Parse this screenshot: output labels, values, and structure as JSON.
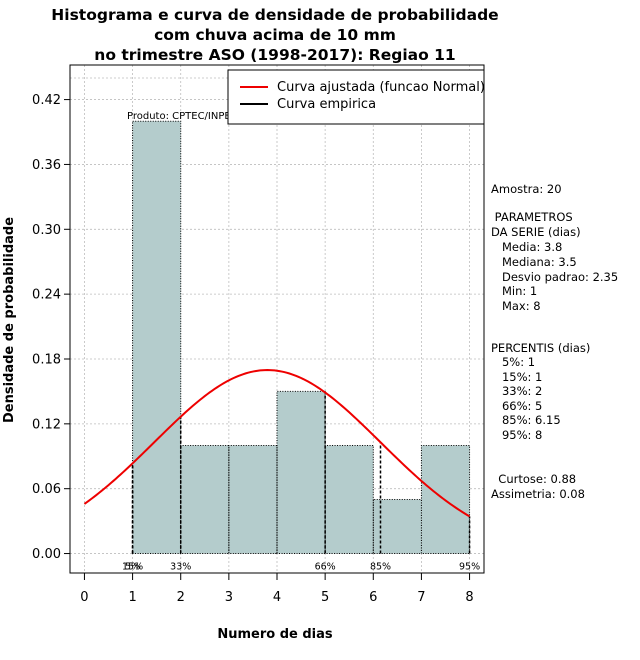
{
  "chart_data": {
    "type": "bar",
    "title_lines": [
      "Histograma e curva de densidade de probabilidade",
      "com chuva acima de 10 mm",
      "no trimestre ASO (1998-2017): Regiao 11"
    ],
    "xlabel": "Numero de dias",
    "ylabel": "Densidade de probabilidade",
    "xlim": [
      -0.3,
      8.3
    ],
    "ylim": [
      -0.018,
      0.452
    ],
    "x_ticks": [
      "0",
      "1",
      "2",
      "3",
      "4",
      "5",
      "6",
      "7",
      "8"
    ],
    "y_ticks": [
      "0.00",
      "0.06",
      "0.12",
      "0.18",
      "0.24",
      "0.30",
      "0.36",
      "0.42"
    ],
    "bins": [
      {
        "from": 1,
        "to": 2,
        "density": 0.4
      },
      {
        "from": 2,
        "to": 3,
        "density": 0.1
      },
      {
        "from": 3,
        "to": 4,
        "density": 0.1
      },
      {
        "from": 4,
        "to": 5,
        "density": 0.15
      },
      {
        "from": 5,
        "to": 6,
        "density": 0.1
      },
      {
        "from": 6,
        "to": 7,
        "density": 0.05
      },
      {
        "from": 7,
        "to": 8,
        "density": 0.1
      }
    ],
    "normal_curve": {
      "mean": 3.8,
      "sd": 2.35,
      "color": "#ee0000"
    },
    "bar_color": "#b4cccc",
    "percentile_markers": [
      {
        "x": 1,
        "label": "5%"
      },
      {
        "x": 1,
        "label": "15%"
      },
      {
        "x": 2,
        "label": "33%"
      },
      {
        "x": 5,
        "label": "66%"
      },
      {
        "x": 6.15,
        "label": "85%"
      },
      {
        "x": 8,
        "label": "95%"
      }
    ],
    "legend": [
      "Curva ajustada (funcao Normal)",
      "Curva empirica"
    ],
    "annotation": "Produto: CPTEC/INPE"
  },
  "stats": {
    "amostra": "Amostra: 20",
    "param_title_1": " PARAMETROS",
    "param_title_2": "DA SERIE (dias)",
    "media": "   Media: 3.8",
    "mediana": "   Mediana: 3.5",
    "desvio": "   Desvio padrao: 2.35",
    "min": "   Min: 1",
    "max": "   Max: 8",
    "percentis_title": "PERCENTIS (dias)",
    "p5": "   5%: 1",
    "p15": "   15%: 1",
    "p33": "   33%: 2",
    "p66": "   66%: 5",
    "p85": "   85%: 6.15",
    "p95": "   95%: 8",
    "curtose": "  Curtose: 0.88",
    "assimetria": "Assimetria: 0.08"
  }
}
